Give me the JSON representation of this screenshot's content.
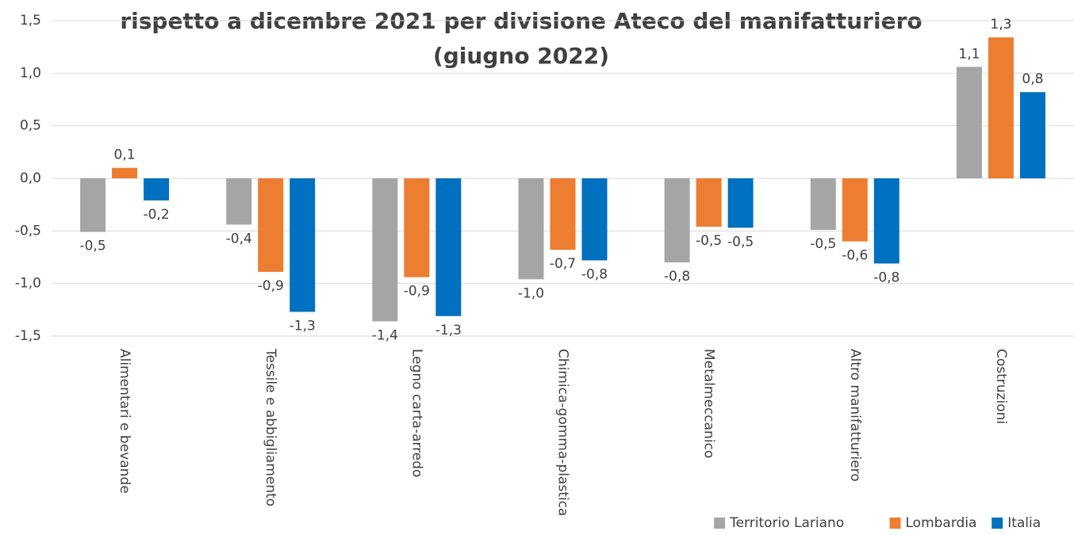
{
  "chart_data": {
    "type": "bar",
    "title": [
      "rispetto a dicembre 2021 per divisione Ateco del manifatturiero",
      "(giugno 2022)"
    ],
    "categories": [
      "Alimentari e bevande",
      "Tessile e abbigliamento",
      "Legno carta-arredo",
      "Chimica-gomma-plastica",
      "Metalmeccanico",
      "Altro manifatturiero",
      "Costruzioni"
    ],
    "series": [
      {
        "name": "Territorio Lariano",
        "color": "#a5a5a5",
        "values": [
          -0.51,
          -0.44,
          -1.36,
          -0.96,
          -0.8,
          -0.49,
          1.06
        ],
        "value_labels": [
          "-0,5",
          "-0,4",
          "-1,4",
          "-1,0",
          "-0,8",
          "-0,5",
          "1,1"
        ]
      },
      {
        "name": "Lombardia",
        "color": "#ed7d31",
        "values": [
          0.1,
          -0.89,
          -0.94,
          -0.68,
          -0.46,
          -0.6,
          1.34
        ],
        "value_labels": [
          "0,1",
          "-0,9",
          "-0,9",
          "-0,7",
          "-0,5",
          "-0,6",
          "1,3"
        ]
      },
      {
        "name": "Italia",
        "color": "#0070c0",
        "values": [
          -0.21,
          -1.27,
          -1.31,
          -0.78,
          -0.47,
          -0.81,
          0.82
        ],
        "value_labels": [
          "-0,2",
          "-1,3",
          "-1,3",
          "-0,8",
          "-0,5",
          "-0,8",
          "0,8"
        ]
      }
    ],
    "ylim": [
      -1.5,
      1.5
    ],
    "yticks": [
      {
        "value": -1.5,
        "label": "-1,5"
      },
      {
        "value": -1,
        "label": "-1,0"
      },
      {
        "value": -0.5,
        "label": "-0,5"
      },
      {
        "value": 0,
        "label": "0,0"
      },
      {
        "value": 0.5,
        "label": "0,5"
      },
      {
        "value": 1,
        "label": "1,0"
      },
      {
        "value": 1.5,
        "label": "1,5"
      }
    ],
    "grid": true,
    "legend": "bottom-right"
  }
}
